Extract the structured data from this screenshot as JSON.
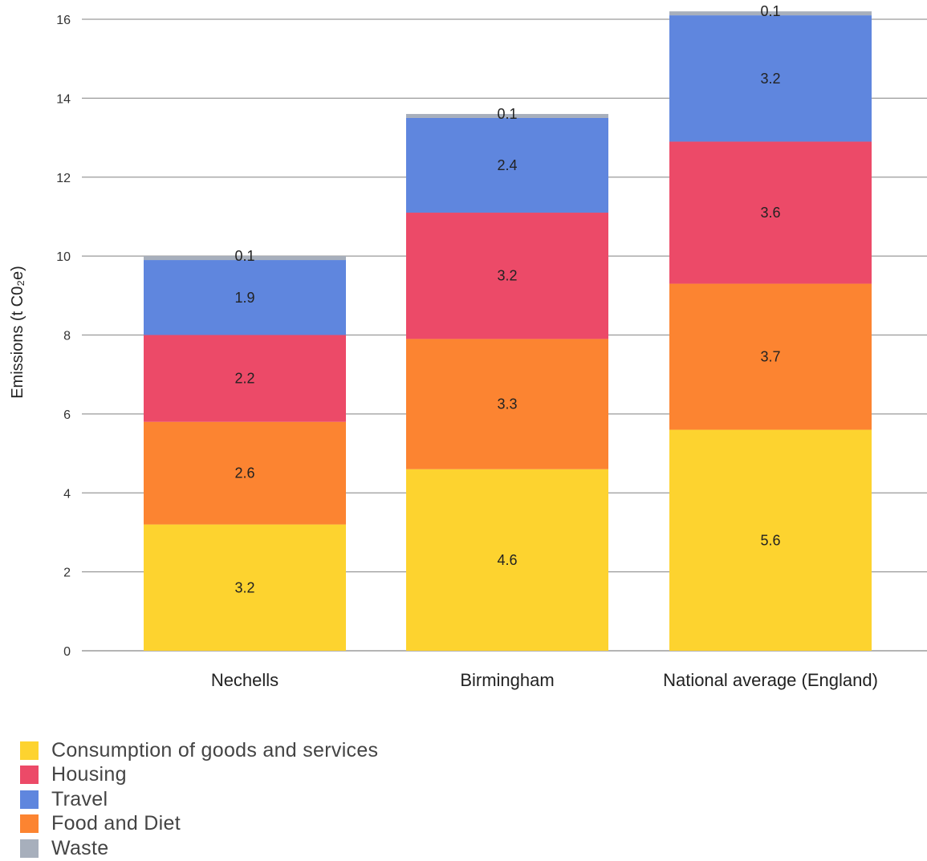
{
  "chart_data": {
    "type": "bar",
    "stacked": true,
    "title": "",
    "xlabel": "",
    "ylabel": "Emissions (t C0₂e)",
    "ylim": [
      0,
      16
    ],
    "yticks": [
      0,
      2,
      4,
      6,
      8,
      10,
      12,
      14,
      16
    ],
    "grid": true,
    "legend_position": "bottom-left",
    "categories": [
      "Nechells",
      "Birmingham",
      "National average (England)"
    ],
    "series": [
      {
        "name": "Consumption of goods and services",
        "color": "#FDD32F",
        "values": [
          3.2,
          4.6,
          5.6
        ]
      },
      {
        "name": "Food and Diet",
        "color": "#FC8431",
        "values": [
          2.6,
          3.3,
          3.7
        ]
      },
      {
        "name": "Housing",
        "color": "#EC4A68",
        "values": [
          2.2,
          3.2,
          3.6
        ]
      },
      {
        "name": "Travel",
        "color": "#5F86DE",
        "values": [
          1.9,
          2.4,
          3.2
        ]
      },
      {
        "name": "Waste",
        "color": "#A7AFBC",
        "values": [
          0.1,
          0.1,
          0.1
        ]
      }
    ],
    "data_labels": [
      [
        "3.2",
        "4.6",
        "5.6"
      ],
      [
        "2.6",
        "3.3",
        "3.7"
      ],
      [
        "2.2",
        "3.2",
        "3.6"
      ],
      [
        "1.9",
        "2.4",
        "3.2"
      ],
      [
        "0.1",
        "0.1",
        "0.1"
      ]
    ],
    "legend": [
      {
        "label": "Consumption of goods and services",
        "color": "#FDD32F"
      },
      {
        "label": "Housing",
        "color": "#EC4A68"
      },
      {
        "label": "Travel",
        "color": "#5F86DE"
      },
      {
        "label": "Food and Diet",
        "color": "#FC8431"
      },
      {
        "label": "Waste",
        "color": "#A7AFBC"
      }
    ]
  }
}
